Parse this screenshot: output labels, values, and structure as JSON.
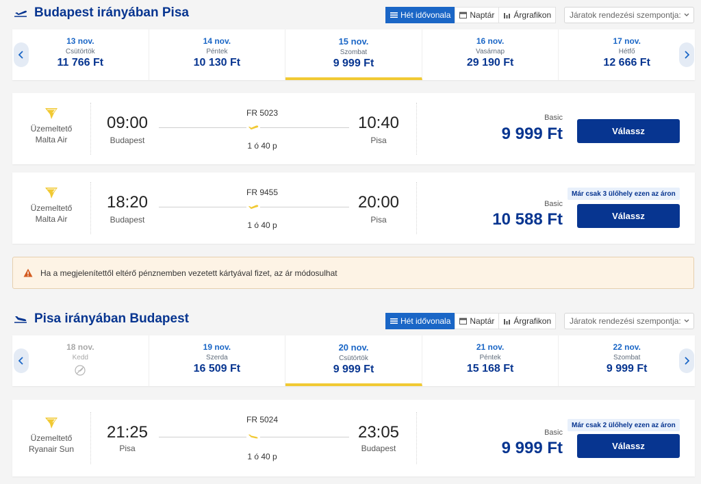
{
  "view_buttons": {
    "week": "Hét idővonala",
    "calendar": "Naptár",
    "price_chart": "Árgrafikon"
  },
  "sort_placeholder": "Járatok rendezési szempontja:",
  "outbound": {
    "title": "Budapest irányában Pisa",
    "dates": [
      {
        "date": "13 nov.",
        "weekday": "Csütörtök",
        "price": "11 766 Ft",
        "selected": false,
        "disabled": false
      },
      {
        "date": "14 nov.",
        "weekday": "Péntek",
        "price": "10 130 Ft",
        "selected": false,
        "disabled": false
      },
      {
        "date": "15 nov.",
        "weekday": "Szombat",
        "price": "9 999 Ft",
        "selected": true,
        "disabled": false
      },
      {
        "date": "16 nov.",
        "weekday": "Vasárnap",
        "price": "29 190 Ft",
        "selected": false,
        "disabled": false
      },
      {
        "date": "17 nov.",
        "weekday": "Hétfő",
        "price": "12 666 Ft",
        "selected": false,
        "disabled": false
      }
    ],
    "flights": [
      {
        "operated_label": "Üzemeltető",
        "operator": "Malta Air",
        "dep_time": "09:00",
        "dep_city": "Budapest",
        "flight_no": "FR 5023",
        "duration": "1 ó 40 p",
        "arr_time": "10:40",
        "arr_city": "Pisa",
        "fare": "Basic",
        "price": "9 999 Ft",
        "seats_note": "",
        "button": "Válassz"
      },
      {
        "operated_label": "Üzemeltető",
        "operator": "Malta Air",
        "dep_time": "18:20",
        "dep_city": "Budapest",
        "flight_no": "FR 9455",
        "duration": "1 ó 40 p",
        "arr_time": "20:00",
        "arr_city": "Pisa",
        "fare": "Basic",
        "price": "10 588 Ft",
        "seats_note": "Már csak 3 ülőhely ezen az áron",
        "button": "Válassz"
      }
    ]
  },
  "warning": {
    "text": "Ha a megjelenítettől eltérő pénznemben vezetett kártyával fizet, az ár módosulhat"
  },
  "inbound": {
    "title": "Pisa irányában Budapest",
    "dates": [
      {
        "date": "18 nov.",
        "weekday": "Kedd",
        "price": "",
        "selected": false,
        "disabled": true
      },
      {
        "date": "19 nov.",
        "weekday": "Szerda",
        "price": "16 509 Ft",
        "selected": false,
        "disabled": false
      },
      {
        "date": "20 nov.",
        "weekday": "Csütörtök",
        "price": "9 999 Ft",
        "selected": true,
        "disabled": false
      },
      {
        "date": "21 nov.",
        "weekday": "Péntek",
        "price": "15 168 Ft",
        "selected": false,
        "disabled": false
      },
      {
        "date": "22 nov.",
        "weekday": "Szombat",
        "price": "9 999 Ft",
        "selected": false,
        "disabled": false
      }
    ],
    "flights": [
      {
        "operated_label": "Üzemeltető",
        "operator": "Ryanair Sun",
        "dep_time": "21:25",
        "dep_city": "Pisa",
        "flight_no": "FR 5024",
        "duration": "1 ó 40 p",
        "arr_time": "23:05",
        "arr_city": "Budapest",
        "fare": "Basic",
        "price": "9 999 Ft",
        "seats_note": "Már csak 2 ülőhely ezen az áron",
        "button": "Válassz"
      }
    ]
  },
  "colors": {
    "brand_blue": "#073590",
    "accent_yellow": "#f1c933",
    "link_blue": "#1a66c6"
  },
  "icons": {
    "header": "plane-takeoff-icon",
    "mid": "plane-icon",
    "logo": "ryanair-harp-logo",
    "warning": "warning-triangle-icon",
    "no_flight": "no-flight-icon"
  }
}
